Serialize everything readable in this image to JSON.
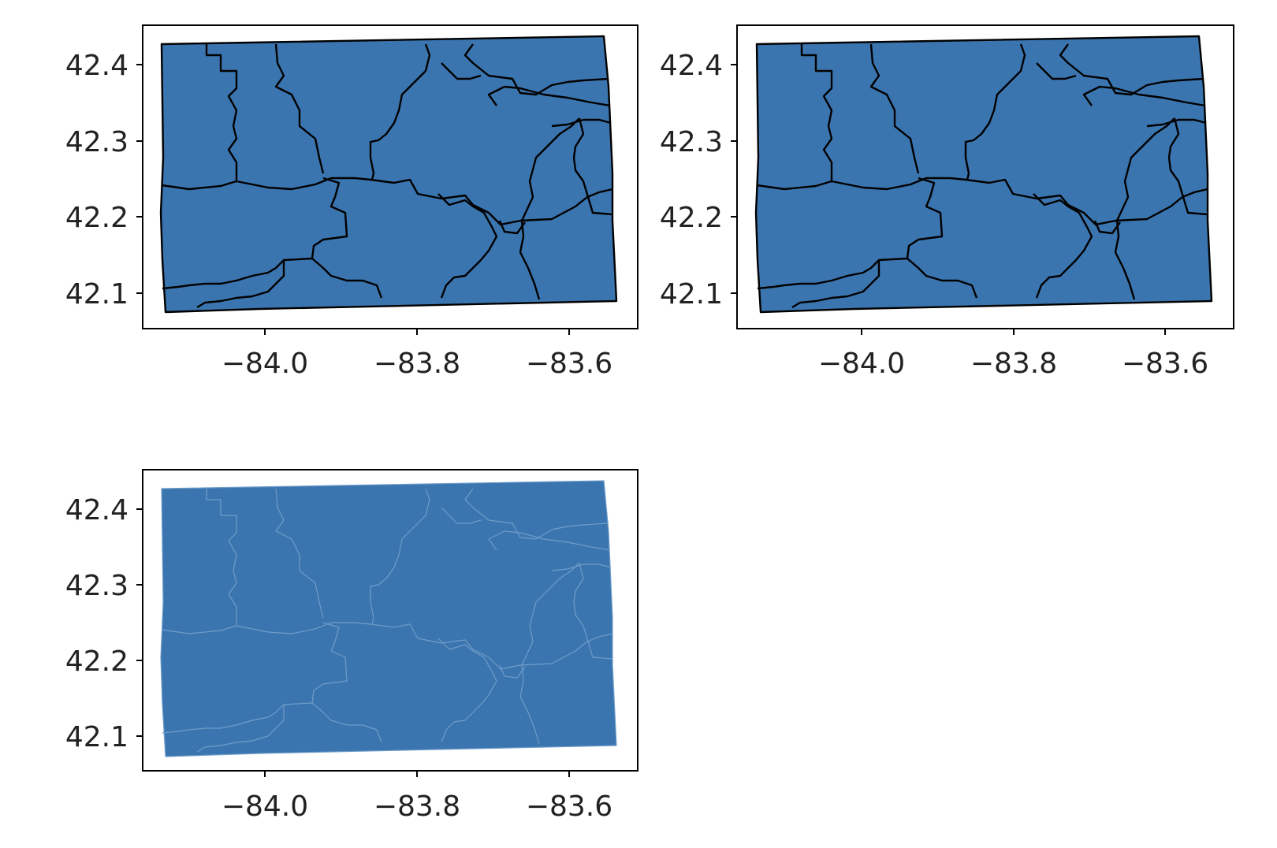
{
  "figure": {
    "fill_color": "#3b75af",
    "border_color": "#000000",
    "panels": [
      {
        "id": "panel-1",
        "xticks": [
          {
            "value": -84.0,
            "label": "−84.0"
          },
          {
            "value": -83.8,
            "label": "−83.8"
          },
          {
            "value": -83.6,
            "label": "−83.6"
          }
        ],
        "yticks": [
          {
            "value": 42.4,
            "label": "42.4"
          },
          {
            "value": 42.3,
            "label": "42.3"
          },
          {
            "value": 42.2,
            "label": "42.2"
          },
          {
            "value": 42.1,
            "label": "42.1"
          }
        ],
        "edge_style": "black"
      },
      {
        "id": "panel-2",
        "xticks": [
          {
            "value": -84.0,
            "label": "−84.0"
          },
          {
            "value": -83.8,
            "label": "−83.8"
          },
          {
            "value": -83.6,
            "label": "−83.6"
          }
        ],
        "yticks": [
          {
            "value": 42.4,
            "label": "42.4"
          },
          {
            "value": 42.3,
            "label": "42.3"
          },
          {
            "value": 42.2,
            "label": "42.2"
          },
          {
            "value": 42.1,
            "label": "42.1"
          }
        ],
        "edge_style": "black"
      },
      {
        "id": "panel-3",
        "xticks": [
          {
            "value": -84.0,
            "label": "−84.0"
          },
          {
            "value": -83.8,
            "label": "−83.8"
          },
          {
            "value": -83.6,
            "label": "−83.6"
          }
        ],
        "yticks": [
          {
            "value": 42.4,
            "label": "42.4"
          },
          {
            "value": 42.3,
            "label": "42.3"
          },
          {
            "value": 42.2,
            "label": "42.2"
          },
          {
            "value": 42.1,
            "label": "42.1"
          }
        ],
        "edge_style": "faint"
      }
    ]
  }
}
